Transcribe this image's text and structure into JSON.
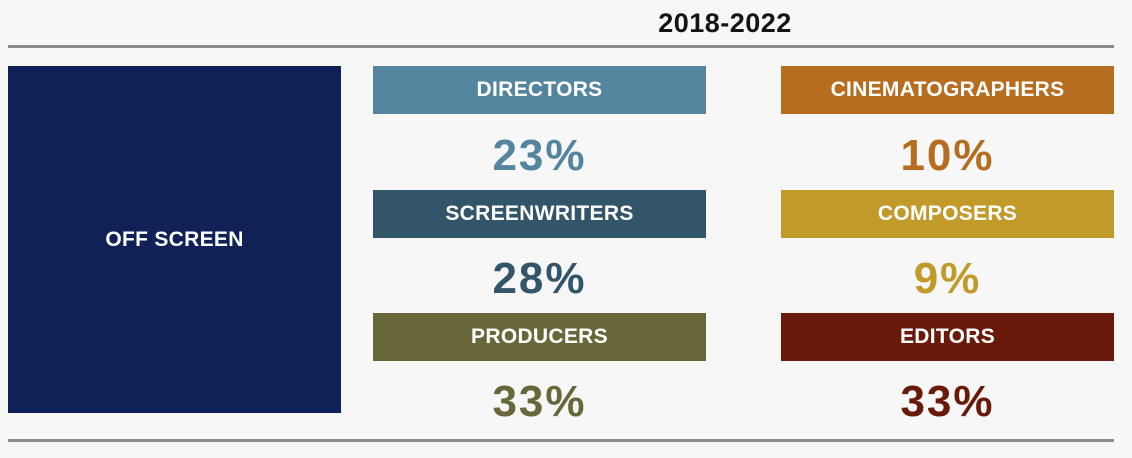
{
  "header": {
    "period": "2018-2022"
  },
  "category": {
    "label": "OFF SCREEN",
    "color": "#0f2157"
  },
  "roles": [
    {
      "label": "DIRECTORS",
      "value": "23%",
      "color": "#53859f"
    },
    {
      "label": "SCREENWRITERS",
      "value": "28%",
      "color": "#33556a"
    },
    {
      "label": "PRODUCERS",
      "value": "33%",
      "color": "#676739"
    },
    {
      "label": "CINEMATOGRAPHERS",
      "value": "10%",
      "color": "#b76d1f"
    },
    {
      "label": "COMPOSERS",
      "value": "9%",
      "color": "#c19a2a"
    },
    {
      "label": "EDITORS",
      "value": "33%",
      "color": "#6a1a0a"
    }
  ]
}
